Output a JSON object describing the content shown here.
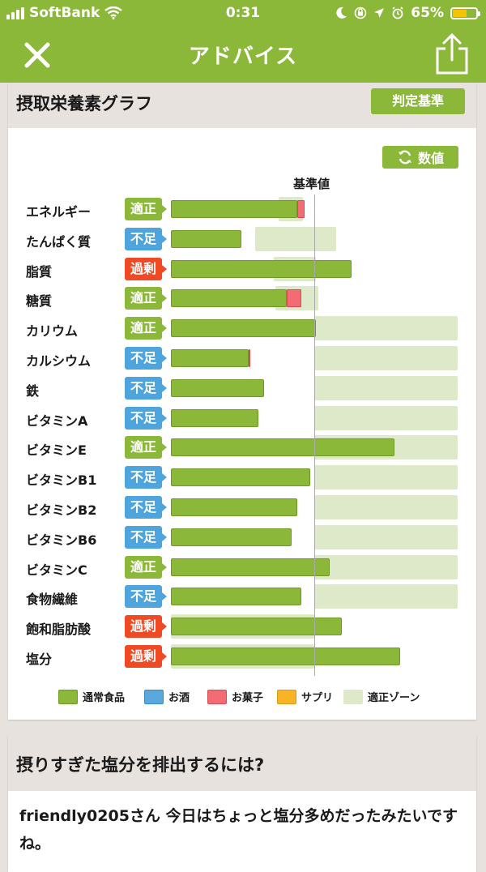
{
  "status_bar": {
    "carrier": "SoftBank",
    "time": "0:31",
    "battery": "65%",
    "battery_level": 0.65,
    "icons": [
      "signal-icon",
      "wifi-icon",
      "moon-icon",
      "orientation-lock-icon",
      "location-icon",
      "alarm-icon",
      "battery-icon"
    ]
  },
  "nav": {
    "title": "アドバイス",
    "close_icon": "close-icon",
    "share_icon": "share-icon"
  },
  "graph_card": {
    "title": "摂取栄養素グラフ",
    "criteria_button": "判定基準",
    "numeric_button": "数値",
    "numeric_icon": "refresh-icon",
    "reference_label": "基準値"
  },
  "nutrients": [
    {
      "name": "エネルギー",
      "status": "適正",
      "status_type": "ok",
      "normal": 0.88,
      "snack": 0.05,
      "zone": [
        0.75,
        0.92
      ]
    },
    {
      "name": "たんぱく質",
      "status": "不足",
      "status_type": "low",
      "normal": 0.49,
      "snack": 0,
      "zone": [
        0.59,
        1.15
      ]
    },
    {
      "name": "脂質",
      "status": "過剰",
      "status_type": "high",
      "normal": 1.26,
      "snack": 0,
      "zone": [
        0.72,
        1.01
      ]
    },
    {
      "name": "糖質",
      "status": "適正",
      "status_type": "ok",
      "normal": 0.81,
      "snack": 0.1,
      "zone": [
        0.73,
        1.03
      ]
    },
    {
      "name": "カリウム",
      "status": "適正",
      "status_type": "ok",
      "normal": 1.01,
      "snack": 0,
      "zone": [
        1.0,
        2.0
      ]
    },
    {
      "name": "カルシウム",
      "status": "不足",
      "status_type": "low",
      "normal": 0.54,
      "snack": 0.01,
      "zone": [
        1.0,
        2.0
      ]
    },
    {
      "name": "鉄",
      "status": "不足",
      "status_type": "low",
      "normal": 0.65,
      "snack": 0,
      "zone": [
        1.0,
        2.0
      ]
    },
    {
      "name": "ビタミンA",
      "status": "不足",
      "status_type": "low",
      "normal": 0.61,
      "snack": 0,
      "zone": [
        1.0,
        2.0
      ]
    },
    {
      "name": "ビタミンE",
      "status": "適正",
      "status_type": "ok",
      "normal": 1.56,
      "snack": 0,
      "zone": [
        1.0,
        2.0
      ]
    },
    {
      "name": "ビタミンB1",
      "status": "不足",
      "status_type": "low",
      "normal": 0.97,
      "snack": 0,
      "zone": [
        1.0,
        2.0
      ]
    },
    {
      "name": "ビタミンB2",
      "status": "不足",
      "status_type": "low",
      "normal": 0.88,
      "snack": 0,
      "zone": [
        1.0,
        2.0
      ]
    },
    {
      "name": "ビタミンB6",
      "status": "不足",
      "status_type": "low",
      "normal": 0.84,
      "snack": 0,
      "zone": [
        1.0,
        2.0
      ]
    },
    {
      "name": "ビタミンC",
      "status": "適正",
      "status_type": "ok",
      "normal": 1.11,
      "snack": 0,
      "zone": [
        1.0,
        2.0
      ]
    },
    {
      "name": "食物繊維",
      "status": "不足",
      "status_type": "low",
      "normal": 0.91,
      "snack": 0,
      "zone": [
        1.0,
        2.0
      ]
    },
    {
      "name": "飽和脂肪酸",
      "status": "過剰",
      "status_type": "high",
      "normal": 1.19,
      "snack": 0,
      "zone": [
        0,
        1.0
      ]
    },
    {
      "name": "塩分",
      "status": "過剰",
      "status_type": "high",
      "normal": 1.6,
      "snack": 0,
      "zone": [
        0,
        1.0
      ]
    }
  ],
  "legend": [
    {
      "label": "通常食品",
      "color": "#8cb83a",
      "border": "#6f9a26"
    },
    {
      "label": "お酒",
      "color": "#5aa8dc",
      "border": "#3c8cc4"
    },
    {
      "label": "お菓子",
      "color": "#f36b73",
      "border": "#d64b55"
    },
    {
      "label": "サプリ",
      "color": "#f6b426",
      "border": "#d99a10"
    },
    {
      "label": "適正ゾーン",
      "color": "#dde9c8",
      "border": "#dde9c8"
    }
  ],
  "status_colors": {
    "ok": "#8cb83a",
    "low": "#4ea4dc",
    "high": "#ef4a23"
  },
  "advice_card": {
    "title": "摂りすぎた塩分を排出するには?",
    "message": "friendly0205さん 今日はちょっと塩分多めだったみたいですね。"
  }
}
